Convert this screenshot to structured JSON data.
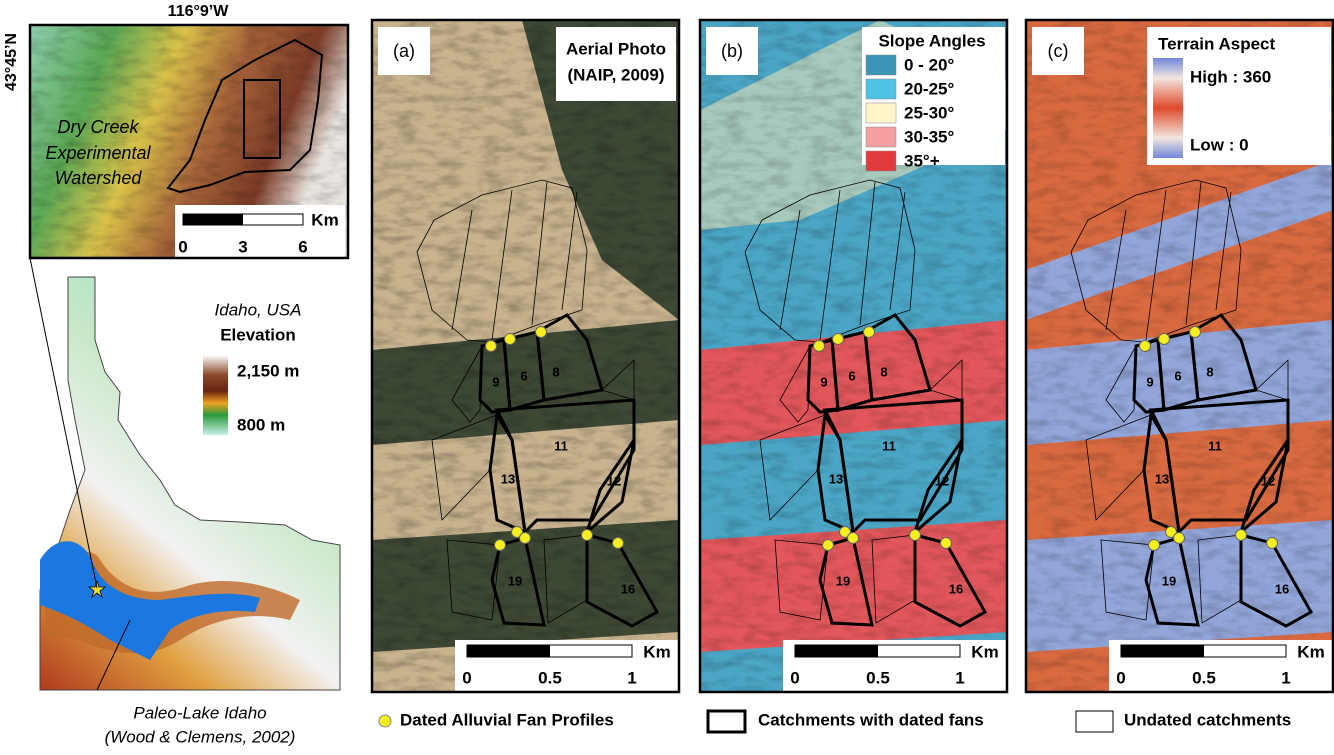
{
  "inset_map": {
    "longitude": "116°9’W",
    "latitude": "43°45’N",
    "label": [
      "Dry Creek",
      "Experimental",
      "Watershed"
    ],
    "scale_bar": {
      "unit": "Km",
      "ticks": [
        "0",
        "3",
        "6"
      ]
    }
  },
  "state_map": {
    "title": "Idaho, USA",
    "legend_title": "Elevation",
    "legend_high": "2,150 m",
    "legend_low": "800 m",
    "lake_label": [
      "Paleo-Lake Idaho",
      "(Wood & Clemens, 2002)"
    ]
  },
  "panels": [
    {
      "letter": "(a)",
      "title": [
        "Aerial Photo",
        "(NAIP, 2009)"
      ]
    },
    {
      "letter": "(b)",
      "legend_title": "Slope Angles",
      "legend_items": [
        "0 - 20°",
        "20-25°",
        "25-30°",
        "30-35°",
        "35°+"
      ]
    },
    {
      "letter": "(c)",
      "legend_title": "Terrain Aspect",
      "legend_high": "High : 360",
      "legend_low": "Low : 0"
    }
  ],
  "catchment_labels": [
    "9",
    "6",
    "8",
    "11",
    "13",
    "12",
    "19",
    "16"
  ],
  "scale_bar": {
    "unit": "Km",
    "ticks": [
      "0",
      "0.5",
      "1"
    ]
  },
  "legend": [
    "Dated Alluvial Fan Profiles",
    "Catchments with dated fans",
    "Undated catchments"
  ]
}
